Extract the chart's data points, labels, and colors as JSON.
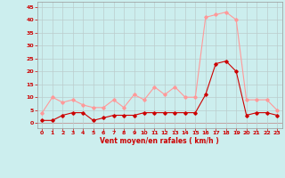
{
  "x": [
    0,
    1,
    2,
    3,
    4,
    5,
    6,
    7,
    8,
    9,
    10,
    11,
    12,
    13,
    14,
    15,
    16,
    17,
    18,
    19,
    20,
    21,
    22,
    23
  ],
  "wind_avg": [
    1,
    1,
    3,
    4,
    4,
    1,
    2,
    3,
    3,
    3,
    4,
    4,
    4,
    4,
    4,
    4,
    11,
    23,
    24,
    20,
    3,
    4,
    4,
    3
  ],
  "wind_gust": [
    4,
    10,
    8,
    9,
    7,
    6,
    6,
    9,
    6,
    11,
    9,
    14,
    11,
    14,
    10,
    10,
    41,
    42,
    43,
    40,
    9,
    9,
    9,
    5
  ],
  "xlabel": "Vent moyen/en rafales ( km/h )",
  "ylim": [
    -2,
    47
  ],
  "yticks": [
    0,
    5,
    10,
    15,
    20,
    25,
    30,
    35,
    40,
    45
  ],
  "xticks": [
    0,
    1,
    2,
    3,
    4,
    5,
    6,
    7,
    8,
    9,
    10,
    11,
    12,
    13,
    14,
    15,
    16,
    17,
    18,
    19,
    20,
    21,
    22,
    23
  ],
  "avg_color": "#cc0000",
  "gust_color": "#ff9999",
  "bg_color": "#cceeee",
  "grid_color": "#bbcccc",
  "label_color": "#cc0000"
}
